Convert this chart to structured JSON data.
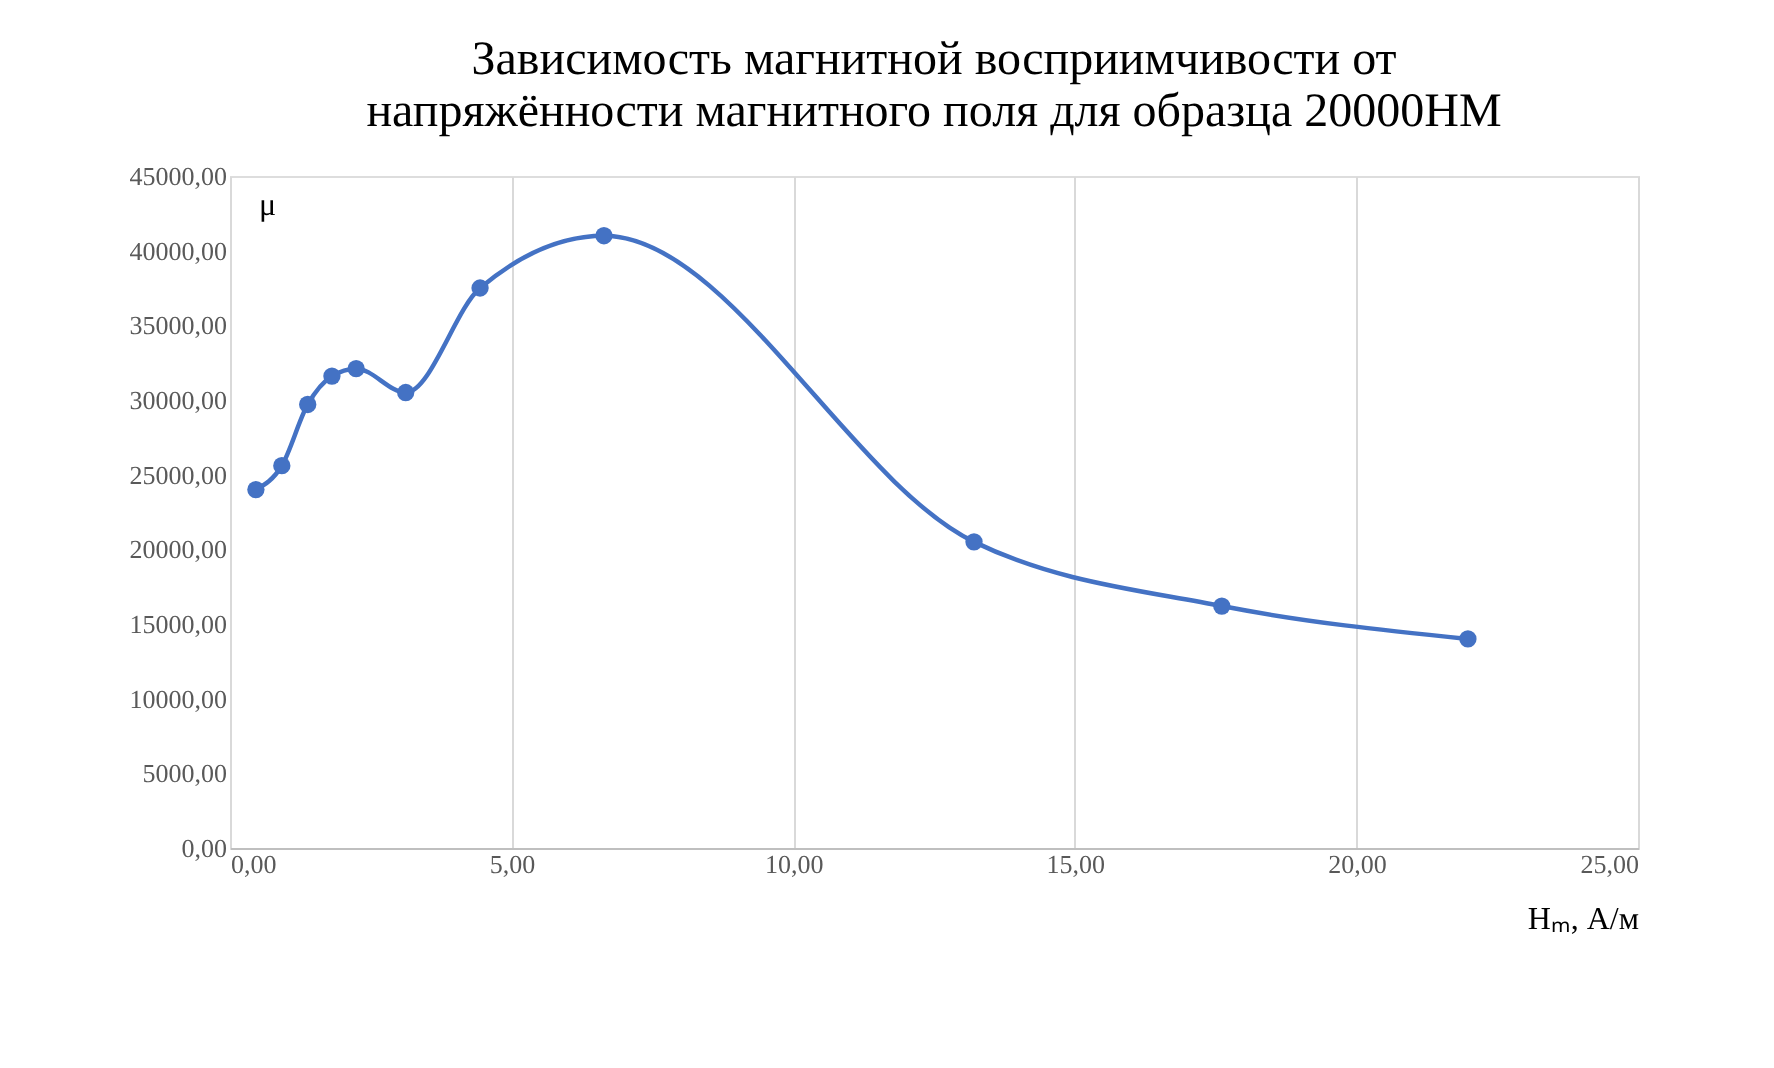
{
  "chart_data": {
    "type": "line",
    "title": [
      "Зависимость магнитной восприимчивости от",
      "напряжённости магнитного поля для образца 20000НМ"
    ],
    "xlabel": "Hₘ, А/м",
    "ylabel": "μ",
    "x": [
      0.46,
      0.92,
      1.38,
      1.81,
      2.24,
      3.12,
      4.44,
      6.64,
      13.21,
      17.61,
      21.98
    ],
    "series": [
      {
        "color": "#4472c4",
        "values": [
          24000,
          25600,
          29700,
          31600,
          32100,
          30500,
          37500,
          41000,
          20500,
          16200,
          14000
        ]
      }
    ],
    "xlim": [
      0,
      25
    ],
    "xticks": [
      {
        "value": 0,
        "label": "0,00"
      },
      {
        "value": 5,
        "label": "5,00"
      },
      {
        "value": 10,
        "label": "10,00"
      },
      {
        "value": 15,
        "label": "15,00"
      },
      {
        "value": 20,
        "label": "20,00"
      },
      {
        "value": 25,
        "label": "25,00"
      }
    ],
    "ylim": [
      0,
      45000
    ],
    "yticks": [
      {
        "value": 0,
        "label": "0,00"
      },
      {
        "value": 5000,
        "label": "5000,00"
      },
      {
        "value": 10000,
        "label": "10000,00"
      },
      {
        "value": 15000,
        "label": "15000,00"
      },
      {
        "value": 20000,
        "label": "20000,00"
      },
      {
        "value": 25000,
        "label": "25000,00"
      },
      {
        "value": 30000,
        "label": "30000,00"
      },
      {
        "value": 35000,
        "label": "35000,00"
      },
      {
        "value": 40000,
        "label": "40000,00"
      },
      {
        "value": 45000,
        "label": "45000,00"
      }
    ],
    "grid": "x",
    "marker": "circle",
    "line_style": "solid"
  }
}
